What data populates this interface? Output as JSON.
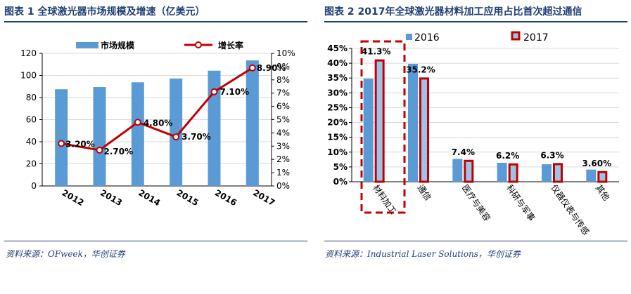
{
  "left": {
    "title": "图表 1  全球激光器市场规模及增速（亿美元）",
    "source": "资料来源：OFweek，华创证券"
  },
  "right": {
    "title": "图表 2  2017年全球激光器材料加工应用占比首次超过通信",
    "source": "资料来源：Industrial Laser Solutions，华创证券"
  },
  "colors": {
    "title_navy": "#1f3f73",
    "bar_blue": "#5b9bd5",
    "line_red": "#c00000",
    "bar2017_fill": "#9dc3e6",
    "bar2017_border": "#c00000"
  },
  "chart_data": [
    {
      "type": "bar",
      "categories": [
        "2012",
        "2013",
        "2014",
        "2015",
        "2016",
        "2017"
      ],
      "series": [
        {
          "name": "市场规模",
          "axis": "left",
          "values": [
            87.5,
            89.5,
            93.8,
            97.2,
            104.3,
            113.6
          ]
        },
        {
          "name": "增长率",
          "type": "line",
          "axis": "right",
          "values": [
            3.2,
            2.7,
            4.8,
            3.7,
            7.1,
            8.9
          ],
          "labels": [
            "3.20%",
            "2.70%",
            "4.80%",
            "3.70%",
            "7.10%",
            "8.90%"
          ]
        }
      ],
      "y_left": {
        "lim": [
          0,
          120
        ],
        "ticks": [
          "0",
          "20",
          "40",
          "60",
          "80",
          "100",
          "120"
        ]
      },
      "y_right": {
        "lim": [
          0,
          10
        ],
        "ticks": [
          "0%",
          "1%",
          "2%",
          "3%",
          "4%",
          "5%",
          "6%",
          "7%",
          "8%",
          "9%",
          "10%"
        ]
      },
      "legend": "top",
      "grid": true
    },
    {
      "type": "bar",
      "categories": [
        "材料加工",
        "通信",
        "医疗与美容",
        "科研与军事",
        "仪器仪表与传感",
        "其他"
      ],
      "series": [
        {
          "name": "2016",
          "values": [
            34.8,
            39.8,
            7.7,
            6.4,
            5.9,
            4.1
          ]
        },
        {
          "name": "2017",
          "values": [
            41.3,
            35.2,
            7.4,
            6.2,
            6.3,
            3.6
          ],
          "labels": [
            "41.3%",
            "35.2%",
            "7.4%",
            "6.2%",
            "6.3%",
            "3.60%"
          ]
        }
      ],
      "y": {
        "lim": [
          0,
          45
        ],
        "ticks": [
          "0%",
          "5%",
          "10%",
          "15%",
          "20%",
          "25%",
          "30%",
          "35%",
          "40%",
          "45%"
        ]
      },
      "legend": "top",
      "grid": true,
      "highlight_category": "材料加工"
    }
  ]
}
